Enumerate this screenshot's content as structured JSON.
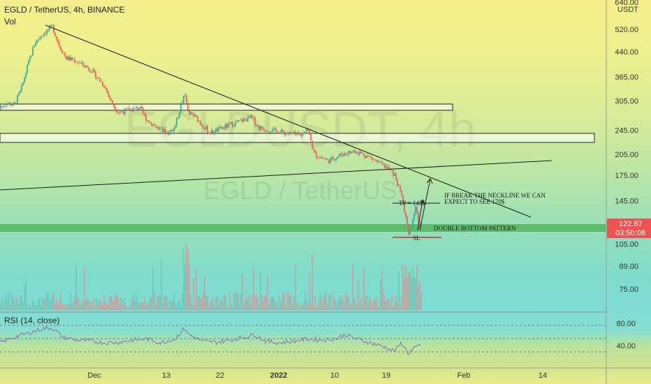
{
  "header": {
    "symbol": "EGLD / TetherUS, 4h, BINANCE",
    "volume_label": "Vol",
    "rsi_label": "RSI (14, close)"
  },
  "watermark": {
    "big": "EGLDUSDT, 4h",
    "small": "EGLD / TetherUS"
  },
  "price_axis": {
    "currency": "USDT",
    "top_label": "640.00",
    "current_price": "122.67",
    "countdown": "03:50:08"
  },
  "annotations": {
    "breakout_line1": "IF BREAK THE NECKLINE WE CAN",
    "breakout_line2": "EXPECT TO SEE 170$",
    "take_profit": "TP = 143$",
    "pattern": "DOUBLE BOTTOM PATTERN",
    "stop_loss": "SL"
  },
  "colors": {
    "up_candle": "#26a69a",
    "down_candle": "#ef5350",
    "price_tag": "#ef5350",
    "support_zone": "#4caf50",
    "trendline": "#1a1a1a",
    "stop_line": "#c0392b"
  },
  "chart_data": {
    "type": "candlestick",
    "title": "EGLD / TetherUS, 4h, BINANCE",
    "y_scale": "log",
    "ylim": [
      64,
      640
    ],
    "price_ticks": [
      520,
      440,
      365,
      305,
      245,
      205,
      175,
      145,
      122.67,
      105,
      89,
      75
    ],
    "x_ticks": [
      "Dec",
      "13",
      "22",
      "2022",
      "10",
      "19",
      "Feb",
      "14"
    ],
    "price_path": {
      "description": "approximate close path, indexed by bar position",
      "points": [
        [
          0,
          290
        ],
        [
          10,
          300
        ],
        [
          20,
          295
        ],
        [
          30,
          330
        ],
        [
          40,
          400
        ],
        [
          50,
          470
        ],
        [
          60,
          500
        ],
        [
          70,
          520
        ],
        [
          75,
          530
        ],
        [
          85,
          460
        ],
        [
          95,
          420
        ],
        [
          110,
          410
        ],
        [
          130,
          385
        ],
        [
          150,
          340
        ],
        [
          160,
          300
        ],
        [
          170,
          280
        ],
        [
          185,
          285
        ],
        [
          200,
          290
        ],
        [
          210,
          265
        ],
        [
          225,
          250
        ],
        [
          240,
          240
        ],
        [
          250,
          250
        ],
        [
          260,
          300
        ],
        [
          265,
          320
        ],
        [
          270,
          280
        ],
        [
          280,
          270
        ],
        [
          300,
          240
        ],
        [
          320,
          250
        ],
        [
          340,
          260
        ],
        [
          350,
          265
        ],
        [
          360,
          270
        ],
        [
          370,
          250
        ],
        [
          390,
          245
        ],
        [
          410,
          240
        ],
        [
          430,
          235
        ],
        [
          440,
          250
        ],
        [
          450,
          205
        ],
        [
          470,
          195
        ],
        [
          490,
          205
        ],
        [
          510,
          210
        ],
        [
          530,
          200
        ],
        [
          545,
          190
        ],
        [
          555,
          185
        ],
        [
          565,
          175
        ],
        [
          575,
          150
        ],
        [
          585,
          115
        ],
        [
          590,
          120
        ],
        [
          595,
          140
        ],
        [
          600,
          120
        ],
        [
          603,
          122.67
        ]
      ]
    },
    "volume_range": [
      0,
      100
    ],
    "rsi": {
      "range": [
        0,
        100
      ],
      "ticks": [
        80,
        40
      ],
      "bands": [
        70,
        50,
        30
      ],
      "path": [
        [
          0,
          45
        ],
        [
          20,
          55
        ],
        [
          40,
          62
        ],
        [
          60,
          70
        ],
        [
          75,
          72
        ],
        [
          90,
          55
        ],
        [
          110,
          50
        ],
        [
          130,
          48
        ],
        [
          150,
          45
        ],
        [
          170,
          46
        ],
        [
          190,
          50
        ],
        [
          210,
          52
        ],
        [
          230,
          45
        ],
        [
          250,
          52
        ],
        [
          265,
          72
        ],
        [
          270,
          60
        ],
        [
          290,
          48
        ],
        [
          310,
          46
        ],
        [
          330,
          50
        ],
        [
          350,
          55
        ],
        [
          365,
          60
        ],
        [
          380,
          48
        ],
        [
          400,
          45
        ],
        [
          420,
          48
        ],
        [
          440,
          52
        ],
        [
          460,
          50
        ],
        [
          480,
          52
        ],
        [
          495,
          60
        ],
        [
          510,
          52
        ],
        [
          530,
          45
        ],
        [
          550,
          38
        ],
        [
          565,
          30
        ],
        [
          575,
          45
        ],
        [
          585,
          25
        ],
        [
          590,
          32
        ],
        [
          600,
          40
        ]
      ]
    },
    "annotations": [
      {
        "text": "TP = 143$",
        "price": 143
      },
      {
        "text": "DOUBLE BOTTOM PATTERN",
        "price": 121
      },
      {
        "text": "SL",
        "price": 111
      }
    ],
    "zones": [
      {
        "name": "resistance-1",
        "from": 290,
        "to": 305
      },
      {
        "name": "resistance-2",
        "from": 222,
        "to": 238
      },
      {
        "name": "support",
        "from": 118,
        "to": 124
      }
    ],
    "trendlines": [
      {
        "name": "descending-trendline",
        "from": [
          65,
          535
        ],
        "to": [
          760,
          138
        ]
      },
      {
        "name": "neckline",
        "from": [
          0,
          158
        ],
        "to": [
          790,
          198
        ]
      }
    ]
  }
}
